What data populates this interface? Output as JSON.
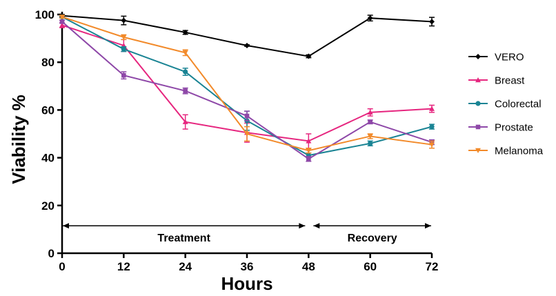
{
  "chart_data": {
    "type": "line",
    "xlabel": "Hours",
    "ylabel": "Viability %",
    "x": [
      0,
      12,
      24,
      36,
      48,
      60,
      72
    ],
    "xticks": [
      "0",
      "12",
      "24",
      "36",
      "48",
      "60",
      "72"
    ],
    "yticks": [
      "0",
      "20",
      "40",
      "60",
      "80",
      "100"
    ],
    "xlim": [
      0,
      72
    ],
    "ylim": [
      0,
      100
    ],
    "grid": false,
    "legend_position": "right",
    "series": [
      {
        "name": "VERO",
        "color": "#000000",
        "marker": "diamond",
        "values": [
          99.5,
          97.5,
          92.5,
          87,
          82.5,
          98.5,
          97
        ],
        "errors": [
          0.5,
          1.8,
          0.8,
          0.3,
          0.6,
          1.2,
          1.8
        ]
      },
      {
        "name": "Breast",
        "color": "#e6267f",
        "marker": "triangle",
        "values": [
          95.5,
          87,
          55,
          50.5,
          47,
          59,
          60.5
        ],
        "errors": [
          1,
          2.5,
          3,
          4,
          3,
          1.5,
          1.5
        ]
      },
      {
        "name": "Colorectal",
        "color": "#1a8494",
        "marker": "circle",
        "values": [
          99,
          85.5,
          76,
          55.5,
          41,
          46,
          53
        ],
        "errors": [
          0.5,
          1,
          1.5,
          4,
          1,
          1,
          1
        ]
      },
      {
        "name": "Prostate",
        "color": "#8e48a8",
        "marker": "square",
        "values": [
          97,
          74.5,
          68,
          57.5,
          39.5,
          55,
          46.5
        ],
        "errors": [
          0.6,
          1.5,
          1.2,
          2,
          1,
          0.8,
          1
        ]
      },
      {
        "name": "Melanoma",
        "color": "#f28a2a",
        "marker": "triangle-down",
        "values": [
          99,
          90.5,
          84,
          50,
          43,
          49,
          45.5
        ],
        "errors": [
          0.5,
          1,
          1.2,
          3,
          1,
          1,
          1.5
        ]
      }
    ],
    "annotations": [
      {
        "text": "Treatment",
        "x_start": 0,
        "x_end": 48,
        "y": 11.5
      },
      {
        "text": "Recovery",
        "x_start": 48,
        "x_end": 72,
        "y": 11.5
      }
    ]
  }
}
